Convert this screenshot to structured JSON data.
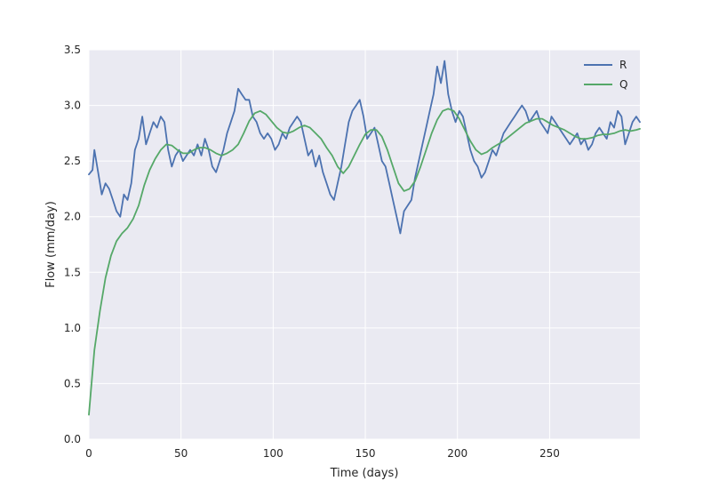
{
  "chart_data": {
    "type": "line",
    "title": "",
    "xlabel": "Time (days)",
    "ylabel": "Flow (mm/day)",
    "xlim": [
      0,
      299
    ],
    "ylim": [
      0,
      3.5
    ],
    "xticks": [
      0,
      50,
      100,
      150,
      200,
      250
    ],
    "yticks": [
      0.0,
      0.5,
      1.0,
      1.5,
      2.0,
      2.5,
      3.0,
      3.5
    ],
    "xtick_labels": [
      "0",
      "50",
      "100",
      "150",
      "200",
      "250"
    ],
    "ytick_labels": [
      "0.0",
      "0.5",
      "1.0",
      "1.5",
      "2.0",
      "2.5",
      "3.0",
      "3.5"
    ],
    "grid": true,
    "background": "#EAEAF2",
    "legend_position": "top-right",
    "series": [
      {
        "name": "R",
        "color": "#4C72B0",
        "x": [
          0,
          2,
          3,
          5,
          7,
          9,
          11,
          13,
          15,
          17,
          19,
          21,
          23,
          25,
          27,
          29,
          31,
          33,
          35,
          37,
          39,
          41,
          43,
          45,
          47,
          49,
          51,
          53,
          55,
          57,
          59,
          61,
          63,
          65,
          67,
          69,
          71,
          73,
          75,
          77,
          79,
          81,
          83,
          85,
          87,
          89,
          91,
          93,
          95,
          97,
          99,
          101,
          103,
          105,
          107,
          109,
          111,
          113,
          115,
          117,
          119,
          121,
          123,
          125,
          127,
          129,
          131,
          133,
          135,
          137,
          139,
          141,
          143,
          145,
          147,
          149,
          151,
          153,
          155,
          157,
          159,
          161,
          163,
          165,
          167,
          169,
          171,
          173,
          175,
          177,
          179,
          181,
          183,
          185,
          187,
          189,
          191,
          193,
          195,
          197,
          199,
          201,
          203,
          205,
          207,
          209,
          211,
          213,
          215,
          217,
          219,
          221,
          223,
          225,
          227,
          229,
          231,
          233,
          235,
          237,
          239,
          241,
          243,
          245,
          247,
          249,
          251,
          253,
          255,
          257,
          259,
          261,
          263,
          265,
          267,
          269,
          271,
          273,
          275,
          277,
          279,
          281,
          283,
          285,
          287,
          289,
          291,
          293,
          295,
          297,
          299
        ],
        "values": [
          2.38,
          2.42,
          2.6,
          2.4,
          2.2,
          2.3,
          2.25,
          2.15,
          2.05,
          2.0,
          2.2,
          2.15,
          2.3,
          2.6,
          2.7,
          2.9,
          2.65,
          2.75,
          2.85,
          2.8,
          2.9,
          2.85,
          2.6,
          2.45,
          2.55,
          2.6,
          2.5,
          2.55,
          2.6,
          2.55,
          2.65,
          2.55,
          2.7,
          2.6,
          2.45,
          2.4,
          2.5,
          2.6,
          2.75,
          2.85,
          2.95,
          3.15,
          3.1,
          3.05,
          3.05,
          2.9,
          2.85,
          2.75,
          2.7,
          2.75,
          2.7,
          2.6,
          2.65,
          2.75,
          2.7,
          2.8,
          2.85,
          2.9,
          2.85,
          2.7,
          2.55,
          2.6,
          2.45,
          2.55,
          2.4,
          2.3,
          2.2,
          2.15,
          2.3,
          2.45,
          2.65,
          2.85,
          2.95,
          3.0,
          3.05,
          2.9,
          2.7,
          2.75,
          2.8,
          2.65,
          2.5,
          2.45,
          2.3,
          2.15,
          2.0,
          1.85,
          2.05,
          2.1,
          2.15,
          2.35,
          2.5,
          2.65,
          2.8,
          2.95,
          3.1,
          3.35,
          3.2,
          3.4,
          3.1,
          2.95,
          2.85,
          2.95,
          2.9,
          2.75,
          2.6,
          2.5,
          2.45,
          2.35,
          2.4,
          2.5,
          2.6,
          2.55,
          2.65,
          2.75,
          2.8,
          2.85,
          2.9,
          2.95,
          3.0,
          2.95,
          2.85,
          2.9,
          2.95,
          2.85,
          2.8,
          2.75,
          2.9,
          2.85,
          2.8,
          2.75,
          2.7,
          2.65,
          2.7,
          2.75,
          2.65,
          2.7,
          2.6,
          2.65,
          2.75,
          2.8,
          2.75,
          2.7,
          2.85,
          2.8,
          2.95,
          2.9,
          2.65,
          2.75,
          2.85,
          2.9,
          2.85
        ],
        "note_detail": "",
        "sampled": true
      },
      {
        "name": "Q",
        "color": "#55A868",
        "x": [
          0,
          3,
          6,
          9,
          12,
          15,
          18,
          21,
          24,
          27,
          30,
          33,
          36,
          39,
          42,
          45,
          48,
          51,
          54,
          57,
          60,
          63,
          66,
          69,
          72,
          75,
          78,
          81,
          84,
          87,
          90,
          93,
          96,
          99,
          102,
          105,
          108,
          111,
          114,
          117,
          120,
          123,
          126,
          129,
          132,
          135,
          138,
          141,
          144,
          147,
          150,
          153,
          156,
          159,
          162,
          165,
          168,
          171,
          174,
          177,
          180,
          183,
          186,
          189,
          192,
          195,
          198,
          201,
          204,
          207,
          210,
          213,
          216,
          219,
          222,
          225,
          228,
          231,
          234,
          237,
          240,
          243,
          246,
          249,
          252,
          255,
          258,
          261,
          264,
          267,
          270,
          273,
          276,
          279,
          282,
          285,
          288,
          291,
          294,
          297,
          299
        ],
        "values": [
          0.22,
          0.8,
          1.15,
          1.45,
          1.65,
          1.78,
          1.85,
          1.9,
          1.98,
          2.1,
          2.28,
          2.42,
          2.52,
          2.6,
          2.65,
          2.64,
          2.6,
          2.57,
          2.57,
          2.6,
          2.62,
          2.62,
          2.6,
          2.57,
          2.55,
          2.57,
          2.6,
          2.65,
          2.75,
          2.86,
          2.93,
          2.95,
          2.92,
          2.86,
          2.8,
          2.76,
          2.75,
          2.77,
          2.8,
          2.82,
          2.8,
          2.75,
          2.7,
          2.62,
          2.55,
          2.45,
          2.39,
          2.45,
          2.55,
          2.65,
          2.74,
          2.78,
          2.78,
          2.72,
          2.6,
          2.45,
          2.3,
          2.23,
          2.25,
          2.32,
          2.45,
          2.6,
          2.75,
          2.87,
          2.95,
          2.97,
          2.95,
          2.88,
          2.78,
          2.68,
          2.6,
          2.56,
          2.58,
          2.62,
          2.65,
          2.68,
          2.72,
          2.76,
          2.8,
          2.84,
          2.86,
          2.88,
          2.88,
          2.85,
          2.82,
          2.8,
          2.78,
          2.75,
          2.72,
          2.7,
          2.7,
          2.71,
          2.73,
          2.74,
          2.74,
          2.75,
          2.77,
          2.78,
          2.77,
          2.78,
          2.79
        ],
        "note_detail": "",
        "sampled": true
      }
    ]
  }
}
